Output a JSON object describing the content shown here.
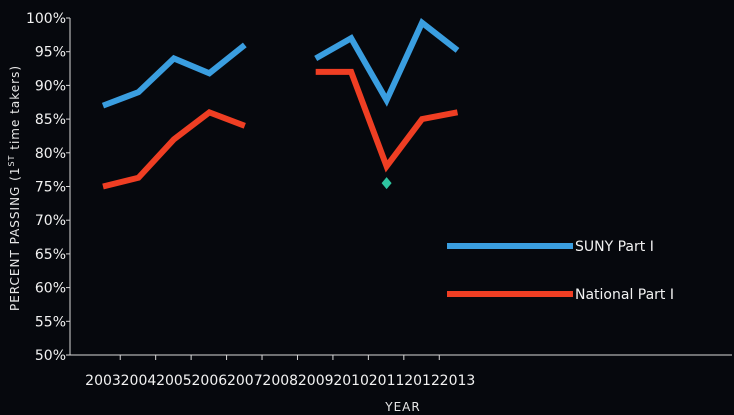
{
  "chart_data": {
    "type": "line",
    "title": "",
    "xlabel": "YEAR",
    "ylabel_main": "PERCENT PASSING (1",
    "ylabel_sup": "ST",
    "ylabel_tail": " time takers)",
    "categories": [
      "2003",
      "2004",
      "2005",
      "2006",
      "2007",
      "2008",
      "2009",
      "2010",
      "2011",
      "2012",
      "2013"
    ],
    "ylim": [
      50,
      100
    ],
    "yticks": [
      "50%",
      "55%",
      "60%",
      "65%",
      "70%",
      "75%",
      "80%",
      "85%",
      "90%",
      "95%",
      "100%"
    ],
    "grid": false,
    "legend_position": "lower-right",
    "series": [
      {
        "name": "SUNY Part I",
        "color": "#3a9ee0",
        "values": [
          87,
          89,
          94,
          91.8,
          96,
          null,
          94,
          97,
          87.8,
          99.3,
          95.2
        ]
      },
      {
        "name": "National Part I",
        "color": "#ef3e23",
        "values": [
          75,
          76.3,
          82,
          86,
          84,
          null,
          92,
          92,
          78,
          85,
          86
        ]
      }
    ],
    "marker": {
      "category": "2011",
      "value": 75.5,
      "color": "#2ec4a0",
      "shape": "diamond"
    }
  }
}
